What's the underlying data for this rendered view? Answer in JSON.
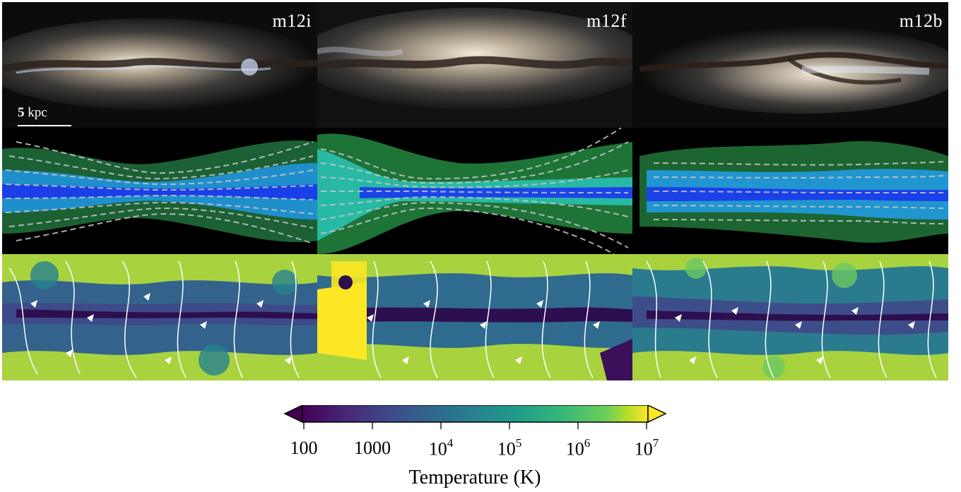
{
  "panels": {
    "columns": [
      "m12i",
      "m12f",
      "m12b"
    ],
    "scale_bar": {
      "value": "5",
      "unit": "kpc"
    }
  },
  "colorbar": {
    "title": "Temperature (K)",
    "colormap": "viridis",
    "extend": "both",
    "scale": "log",
    "range": [
      100,
      10000000
    ],
    "ticks": [
      {
        "base": "100",
        "exp": ""
      },
      {
        "base": "1000",
        "exp": ""
      },
      {
        "base": "10",
        "exp": "4"
      },
      {
        "base": "10",
        "exp": "5"
      },
      {
        "base": "10",
        "exp": "6"
      },
      {
        "base": "10",
        "exp": "7"
      }
    ]
  },
  "colors": {
    "viridis_low": "#440154",
    "viridis_mid": "#21918c",
    "viridis_high": "#fde725",
    "gas_blue": "#1a5cff",
    "gas_green": "#2a9a3a"
  }
}
